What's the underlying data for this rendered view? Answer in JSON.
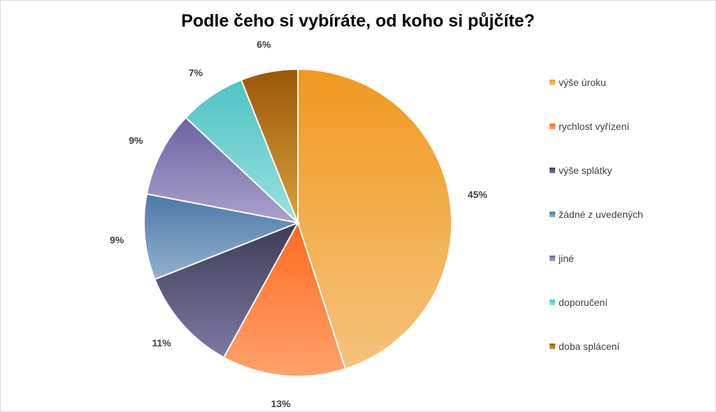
{
  "chart_data": {
    "type": "pie",
    "title": "Podle čeho si vybíráte, od koho si půjčíte?",
    "slices": [
      {
        "label": "výše úroku",
        "value": 45,
        "display": "45%",
        "colors": [
          "#f0991f",
          "#f5c37c"
        ]
      },
      {
        "label": "rychlost vyřízení",
        "value": 13,
        "display": "13%",
        "colors": [
          "#ff6a1f",
          "#ffa26b"
        ]
      },
      {
        "label": "výše splátky",
        "value": 11,
        "display": "11%",
        "colors": [
          "#3d3b56",
          "#7e79a3"
        ]
      },
      {
        "label": "žádné z uvedených",
        "value": 9,
        "display": "9%",
        "colors": [
          "#4d78a8",
          "#93b1d0"
        ]
      },
      {
        "label": "jiné",
        "value": 9,
        "display": "9%",
        "colors": [
          "#6c62a3",
          "#aaa2cc"
        ]
      },
      {
        "label": "doporučení",
        "value": 7,
        "display": "7%",
        "colors": [
          "#4ec4c4",
          "#9bdfe0"
        ]
      },
      {
        "label": "doba splácení",
        "value": 6,
        "display": "6%",
        "colors": [
          "#9b5808",
          "#d9a13e"
        ]
      }
    ],
    "legend_position": "right"
  }
}
